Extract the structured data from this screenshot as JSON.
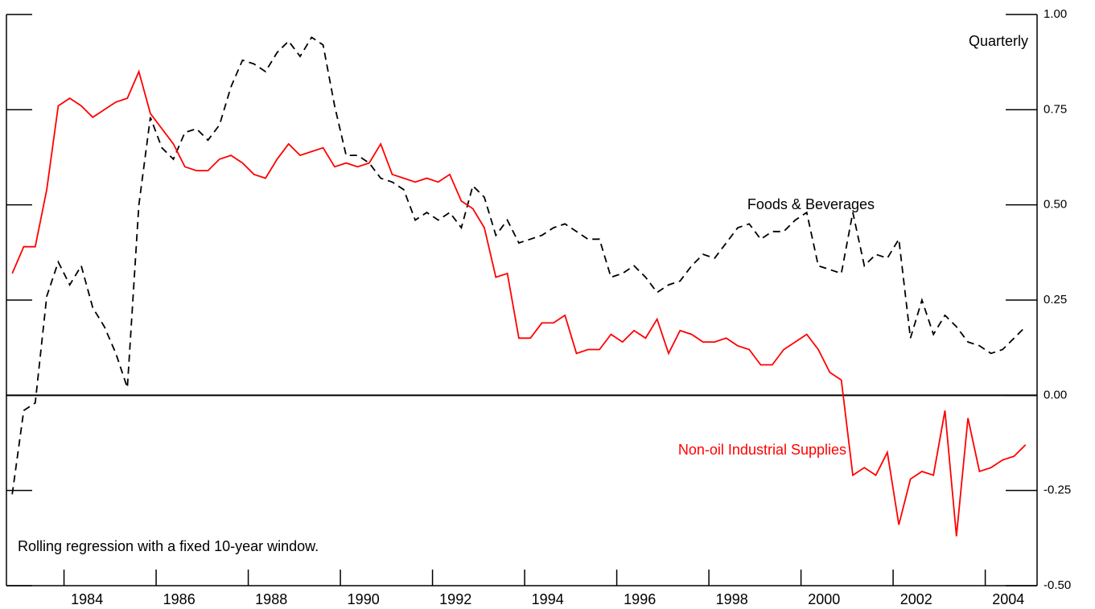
{
  "chart_data": {
    "type": "line",
    "annotations": [
      "Quarterly",
      "Rolling regression with a fixed 10-year window."
    ],
    "x": [
      1982.875,
      1983.125,
      1983.375,
      1983.625,
      1983.875,
      1984.125,
      1984.375,
      1984.625,
      1984.875,
      1985.125,
      1985.375,
      1985.625,
      1985.875,
      1986.125,
      1986.375,
      1986.625,
      1986.875,
      1987.125,
      1987.375,
      1987.625,
      1987.875,
      1988.125,
      1988.375,
      1988.625,
      1988.875,
      1989.125,
      1989.375,
      1989.625,
      1989.875,
      1990.125,
      1990.375,
      1990.625,
      1990.875,
      1991.125,
      1991.375,
      1991.625,
      1991.875,
      1992.125,
      1992.375,
      1992.625,
      1992.875,
      1993.125,
      1993.375,
      1993.625,
      1993.875,
      1994.125,
      1994.375,
      1994.625,
      1994.875,
      1995.125,
      1995.375,
      1995.625,
      1995.875,
      1996.125,
      1996.375,
      1996.625,
      1996.875,
      1997.125,
      1997.375,
      1997.625,
      1997.875,
      1998.125,
      1998.375,
      1998.625,
      1998.875,
      1999.125,
      1999.375,
      1999.625,
      1999.875,
      2000.125,
      2000.375,
      2000.625,
      2000.875,
      2001.125,
      2001.375,
      2001.625,
      2001.875,
      2002.125,
      2002.375,
      2002.625,
      2002.875,
      2003.125,
      2003.375,
      2003.625,
      2003.875,
      2004.125,
      2004.375,
      2004.625,
      2004.875
    ],
    "series": [
      {
        "name": "Foods & Beverages",
        "color": "#000000",
        "dash": true,
        "values": [
          -0.26,
          -0.04,
          -0.02,
          0.26,
          0.35,
          0.29,
          0.34,
          0.23,
          0.18,
          0.11,
          0.02,
          0.5,
          0.73,
          0.65,
          0.62,
          0.69,
          0.7,
          0.67,
          0.71,
          0.81,
          0.88,
          0.87,
          0.85,
          0.9,
          0.93,
          0.89,
          0.94,
          0.92,
          0.76,
          0.63,
          0.63,
          0.61,
          0.57,
          0.56,
          0.54,
          0.46,
          0.48,
          0.46,
          0.48,
          0.44,
          0.55,
          0.52,
          0.42,
          0.46,
          0.4,
          0.41,
          0.42,
          0.44,
          0.45,
          0.43,
          0.41,
          0.41,
          0.31,
          0.32,
          0.34,
          0.31,
          0.27,
          0.29,
          0.3,
          0.34,
          0.37,
          0.36,
          0.4,
          0.44,
          0.45,
          0.41,
          0.43,
          0.43,
          0.46,
          0.48,
          0.34,
          0.33,
          0.32,
          0.48,
          0.34,
          0.37,
          0.36,
          0.41,
          0.15,
          0.25,
          0.16,
          0.21,
          0.18,
          0.14,
          0.13,
          0.11,
          0.12,
          0.15,
          0.18
        ]
      },
      {
        "name": "Non-oil Industrial Supplies",
        "color": "#ff0000",
        "dash": false,
        "values": [
          0.32,
          0.39,
          0.39,
          0.54,
          0.76,
          0.78,
          0.76,
          0.73,
          0.75,
          0.77,
          0.78,
          0.85,
          0.74,
          0.7,
          0.66,
          0.6,
          0.59,
          0.59,
          0.62,
          0.63,
          0.61,
          0.58,
          0.57,
          0.62,
          0.66,
          0.63,
          0.64,
          0.65,
          0.6,
          0.61,
          0.6,
          0.61,
          0.66,
          0.58,
          0.57,
          0.56,
          0.57,
          0.56,
          0.58,
          0.51,
          0.49,
          0.44,
          0.31,
          0.32,
          0.15,
          0.15,
          0.19,
          0.19,
          0.21,
          0.11,
          0.12,
          0.12,
          0.16,
          0.14,
          0.17,
          0.15,
          0.2,
          0.11,
          0.17,
          0.16,
          0.14,
          0.14,
          0.15,
          0.13,
          0.12,
          0.08,
          0.08,
          0.12,
          0.14,
          0.16,
          0.12,
          0.06,
          0.04,
          -0.21,
          -0.19,
          -0.21,
          -0.15,
          -0.34,
          -0.22,
          -0.2,
          -0.21,
          -0.04,
          -0.37,
          -0.06,
          -0.2,
          -0.19,
          -0.17,
          -0.16,
          -0.13
        ]
      }
    ],
    "xlim": [
      1982.75,
      2005.125
    ],
    "xticks": [
      {
        "value": 1984,
        "label": "1984"
      },
      {
        "value": 1986,
        "label": "1986"
      },
      {
        "value": 1988,
        "label": "1988"
      },
      {
        "value": 1990,
        "label": "1990"
      },
      {
        "value": 1992,
        "label": "1992"
      },
      {
        "value": 1994,
        "label": "1994"
      },
      {
        "value": 1996,
        "label": "1996"
      },
      {
        "value": 1998,
        "label": "1998"
      },
      {
        "value": 2000,
        "label": "2000"
      },
      {
        "value": 2002,
        "label": "2002"
      },
      {
        "value": 2004,
        "label": "2004"
      }
    ],
    "ylim": [
      -0.5,
      1.0
    ],
    "yticks": [
      {
        "value": -0.5,
        "label": "-0.50"
      },
      {
        "value": -0.25,
        "label": "-0.25"
      },
      {
        "value": 0,
        "label": "0.00"
      },
      {
        "value": 0.25,
        "label": "0.25"
      },
      {
        "value": 0.5,
        "label": "0.50"
      },
      {
        "value": 0.75,
        "label": "0.75"
      },
      {
        "value": 1.0,
        "label": "1.00"
      }
    ],
    "zero_line": true
  }
}
